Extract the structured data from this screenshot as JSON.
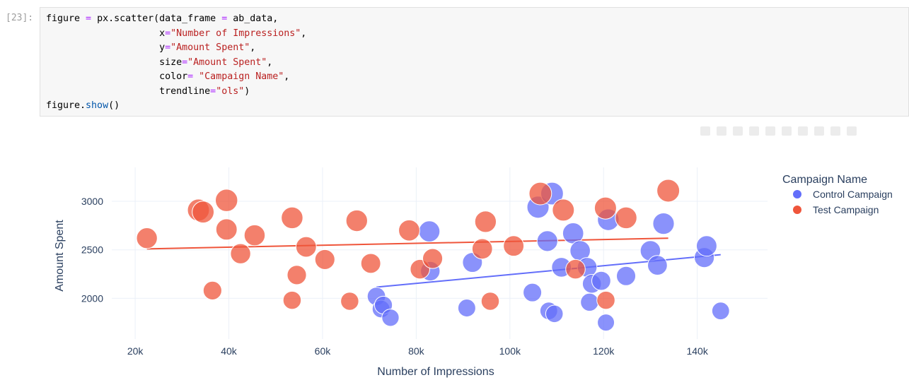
{
  "cell": {
    "prompt": "[23]:",
    "lines": [
      "figure = px.scatter(data_frame = ab_data,",
      "                    x=\"Number of Impressions\",",
      "                    y=\"Amount Spent\",",
      "                    size=\"Amount Spent\",",
      "                    color= \"Campaign Name\",",
      "                    trendline=\"ols\")",
      "figure.show()"
    ]
  },
  "modebar": {
    "icons": [
      "camera-icon",
      "zoom-icon",
      "pan-icon",
      "box-select-icon",
      "lasso-icon",
      "zoom-in-icon",
      "zoom-out-icon",
      "autoscale-icon",
      "reset-axes-icon",
      "plotly-logo-icon"
    ]
  },
  "chart_data": {
    "type": "scatter",
    "xlabel": "Number of Impressions",
    "ylabel": "Amount Spent",
    "xlim": [
      15000,
      155000
    ],
    "ylim": [
      1580,
      3350
    ],
    "xticks": [
      20000,
      40000,
      60000,
      80000,
      100000,
      120000,
      140000
    ],
    "xtick_labels": [
      "20k",
      "40k",
      "60k",
      "80k",
      "100k",
      "120k",
      "140k"
    ],
    "yticks": [
      2000,
      2500,
      3000
    ],
    "ytick_labels": [
      "2000",
      "2500",
      "3000"
    ],
    "grid": true,
    "legend_title": "Campaign Name",
    "legend_position": "top-right",
    "series": [
      {
        "name": "Control Campaign",
        "color": "#636efa",
        "points": [
          [
            82800,
            2690
          ],
          [
            71500,
            2020
          ],
          [
            72500,
            1890
          ],
          [
            73000,
            1930
          ],
          [
            74500,
            1800
          ],
          [
            83000,
            2280
          ],
          [
            90800,
            1900
          ],
          [
            92000,
            2370
          ],
          [
            104800,
            2060
          ],
          [
            106000,
            2940
          ],
          [
            108000,
            2590
          ],
          [
            108300,
            1870
          ],
          [
            109000,
            3080
          ],
          [
            109500,
            1840
          ],
          [
            111000,
            2320
          ],
          [
            113500,
            2670
          ],
          [
            115000,
            2490
          ],
          [
            116500,
            2320
          ],
          [
            117000,
            1960
          ],
          [
            117500,
            2150
          ],
          [
            119500,
            2180
          ],
          [
            120500,
            1750
          ],
          [
            121000,
            2810
          ],
          [
            124800,
            2230
          ],
          [
            130000,
            2490
          ],
          [
            131500,
            2340
          ],
          [
            132800,
            2770
          ],
          [
            141500,
            2420
          ],
          [
            142000,
            2540
          ],
          [
            145000,
            1870
          ]
        ],
        "trendline": [
          [
            71500,
            2115
          ],
          [
            145000,
            2450
          ]
        ]
      },
      {
        "name": "Test Campaign",
        "color": "#ef553b",
        "points": [
          [
            22500,
            2620
          ],
          [
            33500,
            2910
          ],
          [
            34500,
            2890
          ],
          [
            36500,
            2080
          ],
          [
            39500,
            3010
          ],
          [
            39500,
            2710
          ],
          [
            42500,
            2460
          ],
          [
            45500,
            2650
          ],
          [
            53500,
            2830
          ],
          [
            53500,
            1980
          ],
          [
            54500,
            2240
          ],
          [
            56500,
            2530
          ],
          [
            60500,
            2400
          ],
          [
            65800,
            1970
          ],
          [
            67300,
            2800
          ],
          [
            70300,
            2360
          ],
          [
            78500,
            2700
          ],
          [
            80800,
            2300
          ],
          [
            83500,
            2410
          ],
          [
            94100,
            2510
          ],
          [
            94800,
            2790
          ],
          [
            95800,
            1970
          ],
          [
            100800,
            2540
          ],
          [
            106500,
            3080
          ],
          [
            111400,
            2910
          ],
          [
            114000,
            2300
          ],
          [
            120400,
            2930
          ],
          [
            120500,
            1980
          ],
          [
            124800,
            2830
          ],
          [
            133800,
            3110
          ]
        ],
        "trendline": [
          [
            22500,
            2510
          ],
          [
            133800,
            2620
          ]
        ]
      }
    ]
  }
}
